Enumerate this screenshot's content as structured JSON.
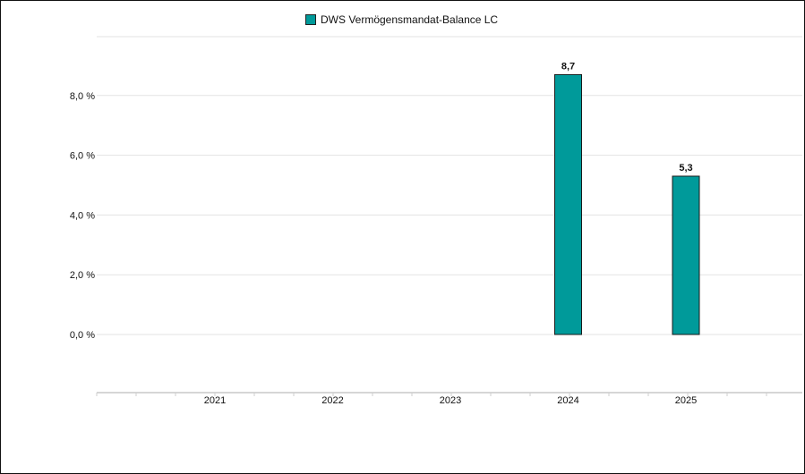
{
  "chart_data": {
    "type": "bar",
    "categories": [
      "2021",
      "2022",
      "2023",
      "2024",
      "2025"
    ],
    "series": [
      {
        "name": "DWS Vermögensmandat-Balance LC",
        "values": [
          null,
          null,
          null,
          8.7,
          5.3
        ],
        "labels": [
          "",
          "",
          "",
          "8,7",
          "5,3"
        ]
      }
    ],
    "yticks": [
      0,
      2,
      4,
      6,
      8
    ],
    "ytick_labels": [
      "0,0 %",
      "2,0 %",
      "4,0 %",
      "6,0 %",
      "8,0 %"
    ],
    "ylim": [
      -2,
      10
    ],
    "grid": true,
    "legend_position": "top-center",
    "colors": {
      "bar": "#009a9a",
      "bar_stroke": "#1a1a1a",
      "grid": "#e3e3e3",
      "text": "#111111"
    }
  }
}
